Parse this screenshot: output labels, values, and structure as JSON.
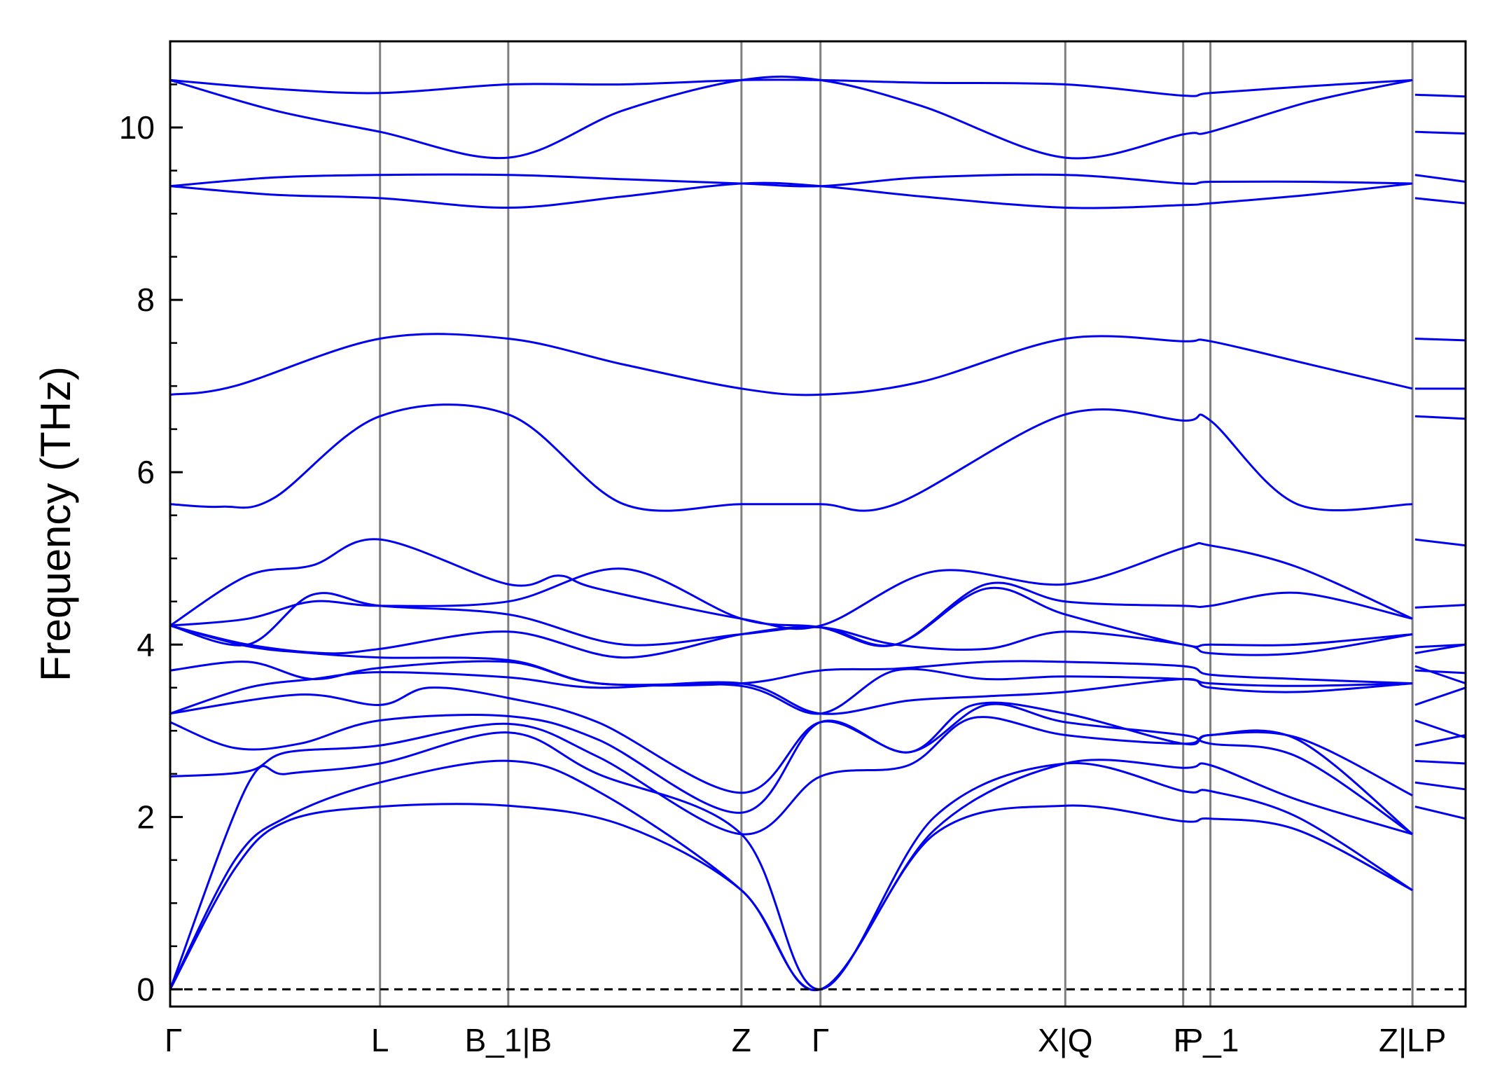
{
  "chart_data": {
    "type": "line",
    "title": "",
    "xlabel": "",
    "ylabel": "Frequency (THz)",
    "ylim": [
      -0.2,
      11.0
    ],
    "yticks": [
      0,
      2,
      4,
      6,
      8,
      10
    ],
    "y_minor_step": 0.5,
    "grid": false,
    "legend": "none",
    "line_color": "#0000ee",
    "zero_line": {
      "y": 0,
      "style": "dashed",
      "color": "#000000"
    },
    "xlim": [
      0,
      1
    ],
    "kpoints": [
      {
        "label": "Γ",
        "x": 0.0
      },
      {
        "label": "L",
        "x": 0.162
      },
      {
        "label": "B_1|B",
        "x": 0.261
      },
      {
        "label": "Z",
        "x": 0.441
      },
      {
        "label": "Γ",
        "x": 0.502
      },
      {
        "label": "X|Q",
        "x": 0.691
      },
      {
        "label": "F",
        "x": 0.782
      },
      {
        "label": "P_1",
        "x": 0.803
      },
      {
        "label": "Z|LP",
        "x": 0.959
      }
    ],
    "bands": [
      {
        "x": [
          0,
          0.06,
          0.09,
          0.162,
          0.261,
          0.33,
          0.441,
          0.502,
          0.59,
          0.691,
          0.782,
          0.803,
          0.87,
          0.959
        ],
        "y": [
          0,
          2.38,
          2.5,
          2.62,
          2.98,
          2.5,
          1.8,
          0,
          2.0,
          2.62,
          2.3,
          2.3,
          2.0,
          1.15
        ]
      },
      {
        "x": [
          0,
          0.05,
          0.09,
          0.162,
          0.261,
          0.33,
          0.441,
          0.502,
          0.59,
          0.691,
          0.782,
          0.803,
          0.87,
          0.959
        ],
        "y": [
          0,
          1.5,
          2.0,
          2.4,
          2.65,
          2.3,
          1.15,
          0,
          1.85,
          2.62,
          2.57,
          2.6,
          2.2,
          1.8
        ]
      },
      {
        "x": [
          0,
          0.05,
          0.09,
          0.162,
          0.261,
          0.35,
          0.441,
          0.502,
          0.59,
          0.691,
          0.782,
          0.803,
          0.87,
          0.959
        ],
        "y": [
          0,
          1.4,
          1.95,
          2.12,
          2.13,
          1.9,
          1.15,
          0,
          1.8,
          2.13,
          1.95,
          1.98,
          1.85,
          1.15
        ]
      },
      {
        "x": [
          0,
          0.06,
          0.09,
          0.162,
          0.261,
          0.33,
          0.441,
          0.502,
          0.57,
          0.62,
          0.691,
          0.782,
          0.803,
          0.87,
          0.959
        ],
        "y": [
          2.47,
          2.53,
          2.75,
          2.83,
          3.08,
          2.7,
          1.8,
          2.47,
          2.6,
          3.15,
          2.95,
          2.85,
          2.95,
          2.9,
          1.8
        ]
      },
      {
        "x": [
          0,
          0.05,
          0.1,
          0.162,
          0.261,
          0.33,
          0.441,
          0.502,
          0.57,
          0.63,
          0.691,
          0.782,
          0.803,
          0.87,
          0.959
        ],
        "y": [
          3.1,
          2.8,
          2.85,
          3.12,
          3.17,
          2.9,
          2.05,
          3.1,
          2.75,
          3.3,
          3.1,
          2.95,
          2.85,
          2.7,
          1.8
        ]
      },
      {
        "x": [
          0,
          0.1,
          0.162,
          0.2,
          0.261,
          0.33,
          0.441,
          0.502,
          0.57,
          0.62,
          0.691,
          0.782,
          0.803,
          0.87,
          0.959
        ],
        "y": [
          3.2,
          3.42,
          3.3,
          3.5,
          3.38,
          3.1,
          2.28,
          3.1,
          2.75,
          3.3,
          3.2,
          2.85,
          2.95,
          2.92,
          2.25
        ]
      },
      {
        "x": [
          0,
          0.06,
          0.11,
          0.162,
          0.261,
          0.33,
          0.441,
          0.502,
          0.57,
          0.63,
          0.691,
          0.782,
          0.803,
          0.87,
          0.959
        ],
        "y": [
          3.2,
          3.5,
          3.6,
          3.68,
          3.62,
          3.5,
          3.55,
          3.2,
          3.35,
          3.4,
          3.45,
          3.6,
          3.5,
          3.45,
          3.55
        ]
      },
      {
        "x": [
          0,
          0.06,
          0.11,
          0.162,
          0.261,
          0.33,
          0.441,
          0.502,
          0.56,
          0.63,
          0.691,
          0.782,
          0.803,
          0.87,
          0.959
        ],
        "y": [
          3.7,
          3.8,
          3.6,
          3.73,
          3.8,
          3.55,
          3.55,
          3.7,
          3.72,
          3.8,
          3.8,
          3.75,
          3.65,
          3.6,
          3.55
        ]
      },
      {
        "x": [
          0,
          0.06,
          0.11,
          0.162,
          0.261,
          0.33,
          0.441,
          0.502,
          0.56,
          0.63,
          0.691,
          0.782,
          0.803,
          0.87,
          0.959
        ],
        "y": [
          4.22,
          3.98,
          3.9,
          3.85,
          3.82,
          3.55,
          3.52,
          3.2,
          3.7,
          3.6,
          3.63,
          3.6,
          3.55,
          3.52,
          3.55
        ]
      },
      {
        "x": [
          0,
          0.06,
          0.12,
          0.162,
          0.261,
          0.35,
          0.441,
          0.502,
          0.56,
          0.63,
          0.691,
          0.782,
          0.803,
          0.87,
          0.959
        ],
        "y": [
          4.22,
          4.0,
          3.9,
          3.95,
          4.15,
          3.85,
          4.12,
          4.2,
          4.0,
          3.95,
          4.15,
          4.0,
          3.9,
          3.9,
          4.12
        ]
      },
      {
        "x": [
          0,
          0.06,
          0.11,
          0.162,
          0.261,
          0.35,
          0.441,
          0.502,
          0.56,
          0.63,
          0.691,
          0.782,
          0.803,
          0.87,
          0.959
        ],
        "y": [
          4.22,
          4.0,
          4.58,
          4.45,
          4.35,
          4.0,
          4.12,
          4.2,
          4.0,
          4.65,
          4.35,
          4.0,
          4.0,
          4.0,
          4.12
        ]
      },
      {
        "x": [
          0,
          0.06,
          0.11,
          0.162,
          0.261,
          0.35,
          0.441,
          0.502,
          0.56,
          0.63,
          0.691,
          0.782,
          0.803,
          0.87,
          0.959
        ],
        "y": [
          4.22,
          4.3,
          4.5,
          4.45,
          4.5,
          4.88,
          4.3,
          4.2,
          4.0,
          4.7,
          4.5,
          4.45,
          4.45,
          4.6,
          4.3
        ]
      },
      {
        "x": [
          0,
          0.06,
          0.11,
          0.162,
          0.261,
          0.3,
          0.33,
          0.441,
          0.502,
          0.59,
          0.691,
          0.782,
          0.803,
          0.87,
          0.959
        ],
        "y": [
          4.22,
          4.8,
          4.92,
          5.22,
          4.7,
          4.8,
          4.65,
          4.3,
          4.22,
          4.85,
          4.7,
          5.12,
          5.15,
          4.9,
          4.3
        ]
      },
      {
        "x": [
          0,
          0.04,
          0.08,
          0.162,
          0.261,
          0.35,
          0.441,
          0.502,
          0.56,
          0.691,
          0.782,
          0.803,
          0.87,
          0.959
        ],
        "y": [
          5.63,
          5.6,
          5.7,
          6.65,
          6.67,
          5.63,
          5.63,
          5.63,
          5.63,
          6.67,
          6.6,
          6.6,
          5.63,
          5.63
        ]
      },
      {
        "x": [
          0,
          0.05,
          0.162,
          0.261,
          0.35,
          0.441,
          0.502,
          0.58,
          0.691,
          0.782,
          0.803,
          0.88,
          0.959
        ],
        "y": [
          6.9,
          7.0,
          7.55,
          7.55,
          7.25,
          6.97,
          6.9,
          7.05,
          7.55,
          7.52,
          7.52,
          7.25,
          6.97
        ]
      },
      {
        "x": [
          0,
          0.08,
          0.162,
          0.261,
          0.35,
          0.441,
          0.502,
          0.58,
          0.691,
          0.782,
          0.803,
          0.88,
          0.959
        ],
        "y": [
          9.32,
          9.22,
          9.18,
          9.07,
          9.2,
          9.35,
          9.32,
          9.2,
          9.07,
          9.1,
          9.12,
          9.22,
          9.35
        ]
      },
      {
        "x": [
          0,
          0.08,
          0.162,
          0.261,
          0.35,
          0.441,
          0.502,
          0.58,
          0.691,
          0.782,
          0.803,
          0.88,
          0.959
        ],
        "y": [
          9.32,
          9.42,
          9.45,
          9.45,
          9.4,
          9.35,
          9.32,
          9.42,
          9.45,
          9.35,
          9.37,
          9.37,
          9.35
        ]
      },
      {
        "x": [
          0,
          0.08,
          0.162,
          0.261,
          0.35,
          0.441,
          0.502,
          0.58,
          0.691,
          0.782,
          0.803,
          0.88,
          0.959
        ],
        "y": [
          10.55,
          10.2,
          9.95,
          9.65,
          10.2,
          10.55,
          10.55,
          10.25,
          9.65,
          9.92,
          9.95,
          10.3,
          10.55
        ]
      },
      {
        "x": [
          0,
          0.08,
          0.162,
          0.261,
          0.35,
          0.441,
          0.502,
          0.58,
          0.691,
          0.782,
          0.803,
          0.88,
          0.959
        ],
        "y": [
          10.55,
          10.45,
          10.4,
          10.5,
          10.5,
          10.55,
          10.55,
          10.52,
          10.5,
          10.37,
          10.4,
          10.48,
          10.55
        ]
      }
    ],
    "right_segment": {
      "x": [
        0.961,
        1.0
      ],
      "bands": [
        [
          10.38,
          10.36
        ],
        [
          9.95,
          9.93
        ],
        [
          9.45,
          9.37
        ],
        [
          9.18,
          9.12
        ],
        [
          7.55,
          7.53
        ],
        [
          6.97,
          6.97
        ],
        [
          6.65,
          6.62
        ],
        [
          5.22,
          5.15
        ],
        [
          4.43,
          4.46
        ],
        [
          3.97,
          4.0
        ],
        [
          3.9,
          4.0
        ],
        [
          3.75,
          3.55
        ],
        [
          3.7,
          3.67
        ],
        [
          3.3,
          3.5
        ],
        [
          3.12,
          2.92
        ],
        [
          2.83,
          2.95
        ],
        [
          2.65,
          2.62
        ],
        [
          2.4,
          2.32
        ],
        [
          2.12,
          1.98
        ]
      ]
    }
  }
}
